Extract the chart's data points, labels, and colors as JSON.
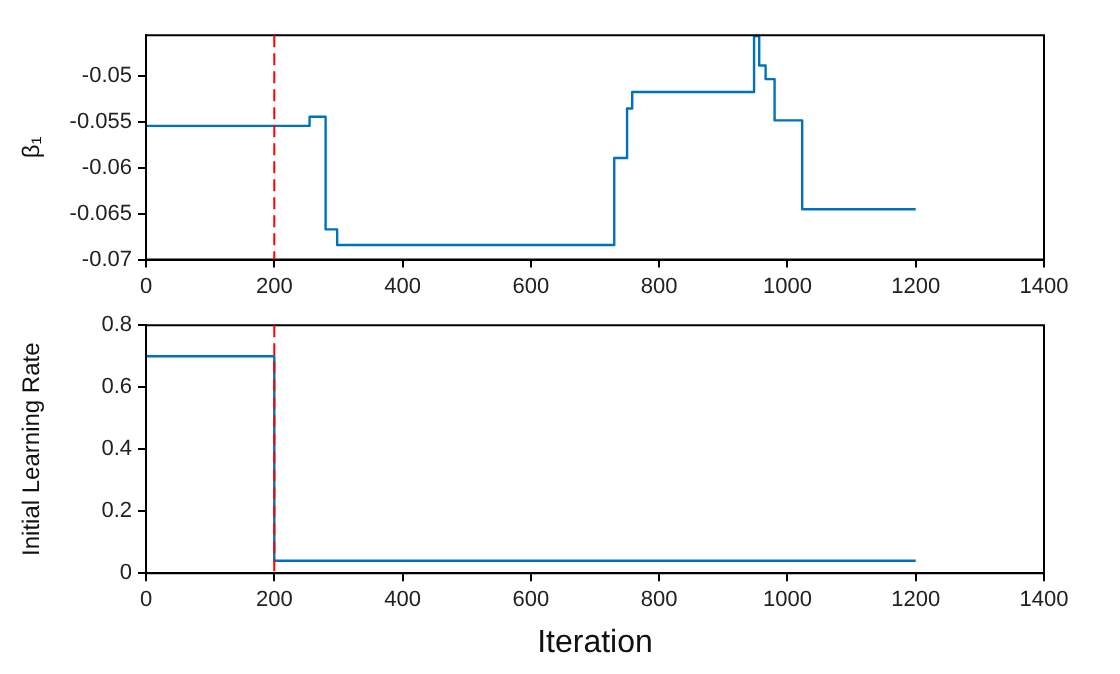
{
  "chart_data": [
    {
      "type": "step",
      "ylabel": "β₁",
      "x": [
        0,
        255,
        280,
        298,
        730,
        750,
        758,
        948,
        956,
        966,
        980,
        1023,
        1200
      ],
      "series": [
        {
          "color": "#0072bd",
          "values": [
            -0.0554,
            -0.0544,
            -0.0667,
            -0.0684,
            -0.0589,
            -0.0535,
            -0.0517,
            -0.0456,
            -0.0488,
            -0.0503,
            -0.0548,
            -0.0645,
            -0.0645
          ]
        }
      ],
      "xlim": [
        0,
        1400
      ],
      "xticks": [
        0,
        200,
        400,
        600,
        800,
        1000,
        1200,
        1400
      ],
      "ylim": [
        -0.07,
        -0.0455
      ],
      "yticks": [
        -0.07,
        -0.065,
        -0.06,
        -0.055,
        -0.05
      ],
      "ref_lines": [
        {
          "axis": "x",
          "value": 200,
          "color": "#ff0000",
          "line_style": "dashed"
        }
      ],
      "grid": false,
      "legend": false
    },
    {
      "type": "step",
      "xlabel": "Iteration",
      "ylabel": "Initial Learning Rate",
      "x": [
        0,
        200,
        1200
      ],
      "series": [
        {
          "color": "#0072bd",
          "values": [
            0.7,
            0.04,
            0.04
          ]
        }
      ],
      "xlim": [
        0,
        1400
      ],
      "xticks": [
        0,
        200,
        400,
        600,
        800,
        1000,
        1200,
        1400
      ],
      "ylim": [
        0,
        0.8
      ],
      "yticks": [
        0,
        0.2,
        0.4,
        0.6,
        0.8
      ],
      "ref_lines": [
        {
          "axis": "x",
          "value": 200,
          "color": "#ff0000",
          "line_style": "dashed"
        }
      ],
      "grid": false,
      "legend": false
    }
  ]
}
